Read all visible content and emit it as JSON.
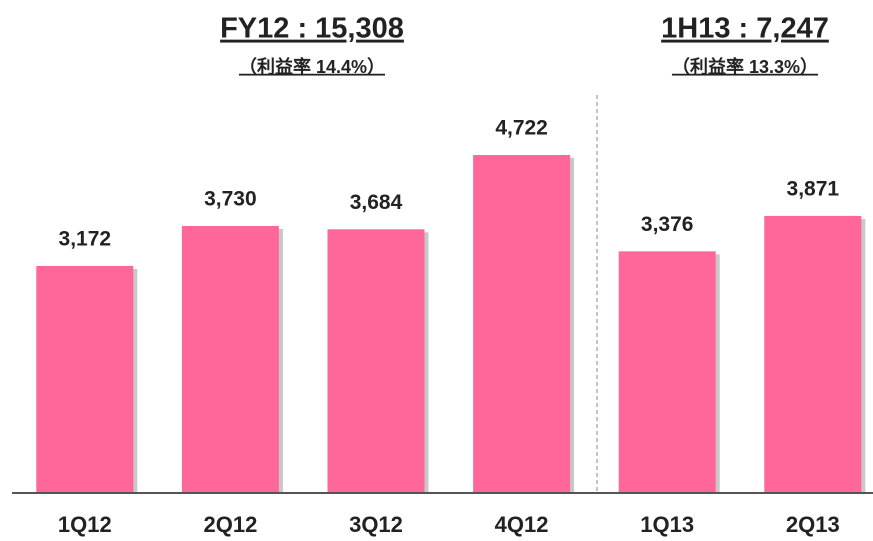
{
  "chart_data": {
    "type": "bar",
    "annotations": [
      "FY12 : 15,308",
      "（利益率 14.4%）",
      "1H13 : 7,247",
      "（利益率 13.3%）"
    ],
    "categories": [
      "1Q12",
      "2Q12",
      "3Q12",
      "4Q12",
      "1Q13",
      "2Q13"
    ],
    "values": [
      3172,
      3730,
      3684,
      4722,
      3376,
      3871
    ],
    "value_labels": [
      "3,172",
      "3,730",
      "3,684",
      "4,722",
      "3,376",
      "3,871"
    ],
    "color": "#ff6699"
  }
}
